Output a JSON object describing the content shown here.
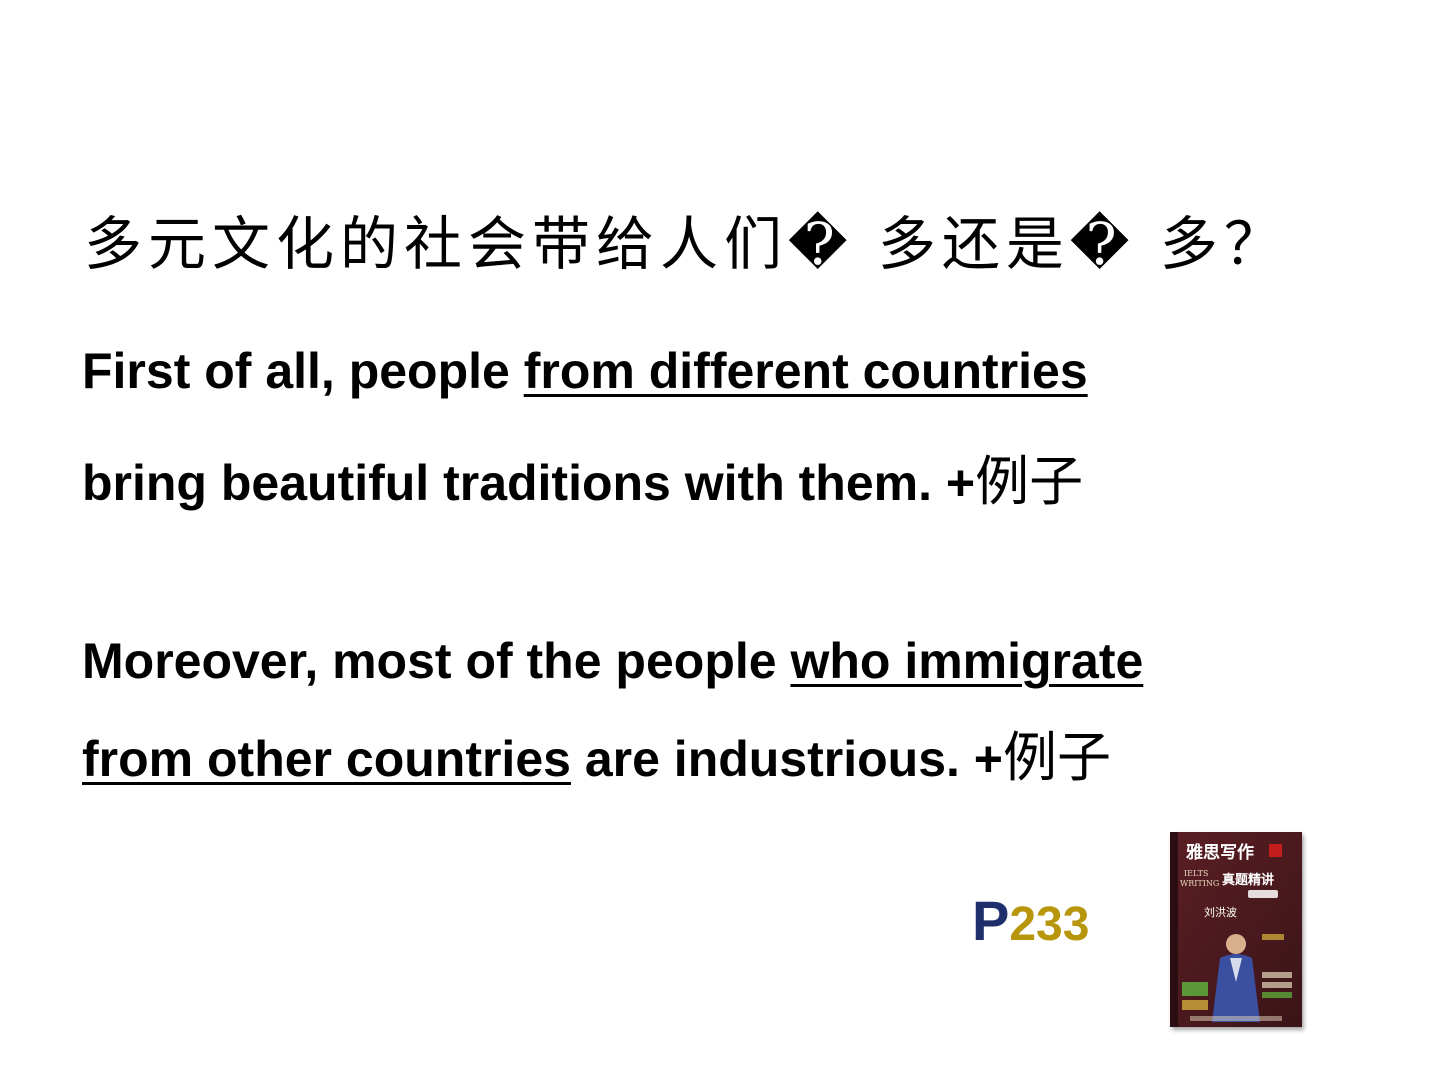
{
  "title": "多元文化的社会带给人们� 多还是� 多？",
  "paragraph1": {
    "line1_pre": "First of all, people ",
    "line1_underlined": "from different countries",
    "line2_text": "bring beautiful traditions with them.  +",
    "line2_cn": "例子"
  },
  "paragraph2": {
    "line1_pre": "Moreover, most of the people ",
    "line1_underlined": "who immigrate",
    "line2_underlined": "from other countries",
    "line2_text": " are industrious.  +",
    "line2_cn": "例子"
  },
  "page_reference": {
    "prefix": "P",
    "number": "233"
  },
  "book_cover": {
    "title_cn": "雅思写作",
    "subtitle_cn": "真题精讲",
    "en_line1": "IELTS",
    "en_line2": "WRITING",
    "author": "刘洪波",
    "colors": {
      "cover_dark": "#3a1418",
      "cover_mid": "#5b1f24",
      "accent_red": "#c21e1e",
      "figure_blue": "#3b4fa0",
      "label_green": "#5da63a"
    }
  },
  "colors": {
    "text": "#000000",
    "page_prefix": "#1f2f6b",
    "page_number": "#b8960c",
    "background": "#ffffff"
  }
}
